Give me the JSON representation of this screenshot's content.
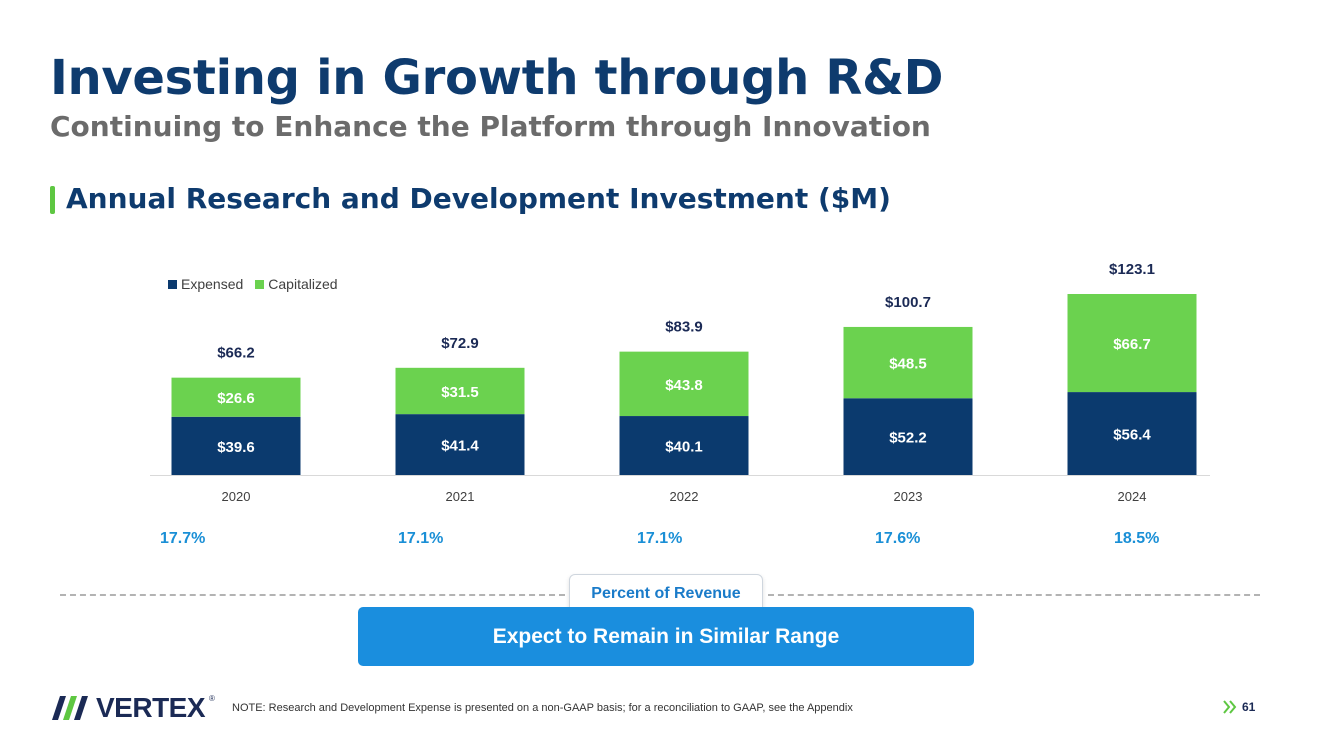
{
  "header": {
    "title": "Investing in Growth through R&D",
    "subtitle": "Continuing to Enhance the Platform through Innovation",
    "section_title": "Annual Research and Development Investment ($M)"
  },
  "colors": {
    "expensed": "#0b3a6e",
    "capitalized": "#6bd24f",
    "title": "#0e3b6e",
    "accent": "#1a8ede"
  },
  "chart_data": {
    "type": "bar",
    "stacked": true,
    "title": "Annual Research and Development Investment ($M)",
    "categories": [
      "2020",
      "2021",
      "2022",
      "2023",
      "2024"
    ],
    "series": [
      {
        "name": "Expensed",
        "values": [
          39.6,
          41.4,
          40.1,
          52.2,
          56.4
        ],
        "labels": [
          "$39.6",
          "$41.4",
          "$40.1",
          "$52.2",
          "$56.4"
        ]
      },
      {
        "name": "Capitalized",
        "values": [
          26.6,
          31.5,
          43.8,
          48.5,
          66.7
        ],
        "labels": [
          "$26.6",
          "$31.5",
          "$43.8",
          "$48.5",
          "$66.7"
        ]
      }
    ],
    "totals": [
      66.2,
      72.9,
      83.9,
      100.7,
      123.1
    ],
    "total_labels": [
      "$66.2",
      "$72.9",
      "$83.9",
      "$100.7",
      "$123.1"
    ],
    "legend": [
      "Expensed",
      "Capitalized"
    ],
    "legend_position": "top-left",
    "percent_of_revenue": [
      "17.7%",
      "17.1%",
      "17.1%",
      "17.6%",
      "18.5%"
    ],
    "percent_label": "Percent of Revenue",
    "ylim": [
      0,
      130
    ]
  },
  "callout": {
    "label": "Expect to Remain in Similar Range"
  },
  "footer": {
    "logo_text": "VERTEX",
    "logo_mark": "®",
    "note": "NOTE: Research and Development Expense is presented on a non-GAAP basis; for a reconciliation to GAAP, see the Appendix",
    "page_number": "61"
  }
}
